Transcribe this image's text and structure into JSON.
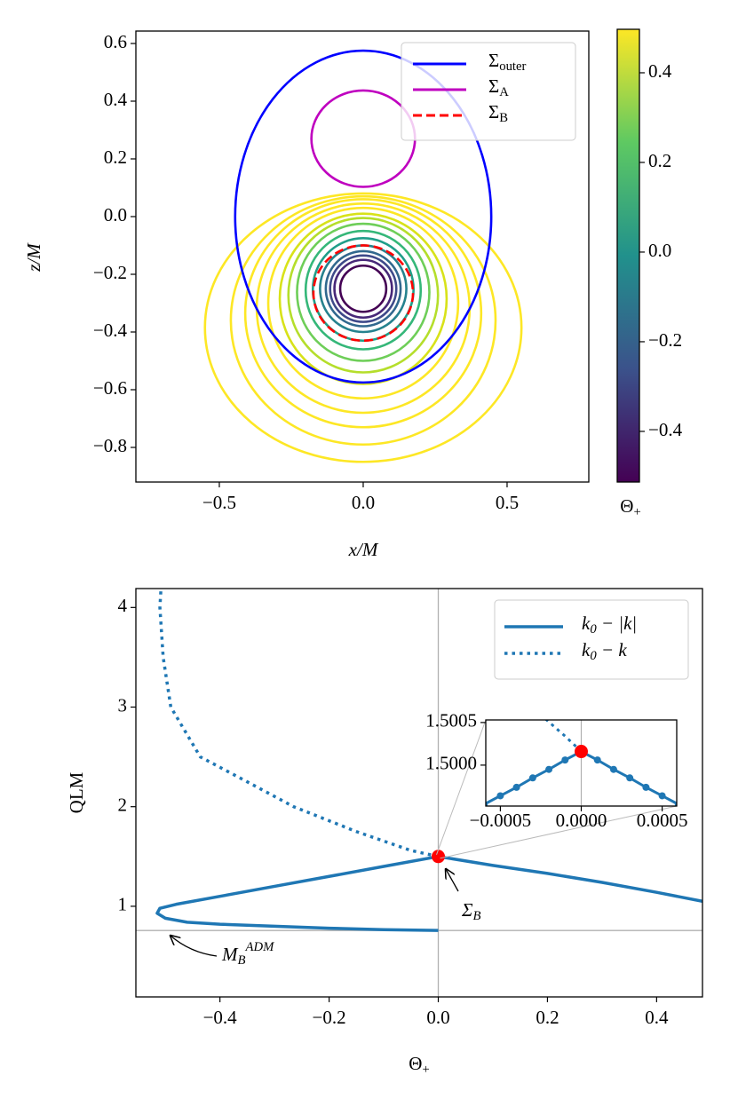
{
  "chart_data": [
    {
      "type": "contour",
      "xlabel": "x/M",
      "ylabel": "z/M",
      "xlim": [
        -0.79,
        0.784
      ],
      "ylim": [
        -0.92,
        0.643
      ],
      "xticks": [
        {
          "value": -0.5,
          "label": "−0.5"
        },
        {
          "value": 0,
          "label": "0.0"
        },
        0.5
      ],
      "yticks": [
        {
          "value": -0.8,
          "label": "−0.8"
        },
        {
          "value": -0.6,
          "label": "−0.6"
        },
        {
          "value": -0.4,
          "label": "−0.4"
        },
        {
          "value": -0.2,
          "label": "−0.2"
        },
        {
          "value": 0,
          "label": "0.0"
        },
        0.2,
        0.4,
        0.6
      ],
      "contours": [
        {
          "color": "#ffffff",
          "center": [
            0,
            -0.25
          ],
          "radii": [
            0.025,
            0.025
          ]
        },
        {
          "color": "#ffffff",
          "center": [
            0,
            -0.25
          ],
          "radii": [
            0.043,
            0.043
          ]
        },
        {
          "color": "#ffffff",
          "center": [
            0,
            -0.25
          ],
          "radii": [
            0.06,
            0.06
          ]
        },
        {
          "color": "#440154",
          "center": [
            0,
            -0.25
          ],
          "radii": [
            0.08,
            0.08
          ]
        },
        {
          "color": "#482878",
          "center": [
            0,
            -0.25
          ],
          "radii": [
            0.1,
            0.1
          ]
        },
        {
          "color": "#3e4989",
          "center": [
            0,
            -0.25
          ],
          "radii": [
            0.115,
            0.115
          ]
        },
        {
          "color": "#31688e",
          "center": [
            0,
            -0.25
          ],
          "radii": [
            0.13,
            0.13
          ]
        },
        {
          "color": "#26828e",
          "center": [
            0,
            -0.25
          ],
          "radii": [
            0.15,
            0.15
          ]
        },
        {
          "color": "#1f9e89",
          "center": [
            0,
            -0.2525
          ],
          "radii": [
            0.175,
            0.1775
          ]
        },
        {
          "color": "#35b779",
          "center": [
            0,
            -0.255
          ],
          "radii": [
            0.2,
            0.205
          ]
        },
        {
          "color": "#6ece58",
          "center": [
            0,
            -0.2625
          ],
          "radii": [
            0.23,
            0.2375
          ]
        },
        {
          "color": "#b5de2b",
          "center": [
            0,
            -0.2725
          ],
          "radii": [
            0.26,
            0.2675
          ]
        },
        {
          "color": "#d8e219",
          "center": [
            0,
            -0.285
          ],
          "radii": [
            0.29,
            0.295
          ]
        },
        {
          "color": "#fde725",
          "center": [
            0,
            -0.3
          ],
          "radii": [
            0.33,
            0.33
          ]
        },
        {
          "color": "#fde725",
          "center": [
            0,
            -0.3175
          ],
          "radii": [
            0.37,
            0.3625
          ]
        },
        {
          "color": "#fde725",
          "center": [
            0,
            -0.335
          ],
          "radii": [
            0.41,
            0.395
          ]
        },
        {
          "color": "#fde725",
          "center": [
            0,
            -0.36
          ],
          "radii": [
            0.46,
            0.43
          ]
        },
        {
          "color": "#fde725",
          "center": [
            0,
            -0.385
          ],
          "radii": [
            0.55,
            0.465
          ]
        }
      ],
      "series": [
        {
          "name": "Σouter",
          "color": "#0000ff",
          "linestyle": "solid",
          "center": [
            0,
            0
          ],
          "radii": [
            0.445,
            0.575
          ]
        },
        {
          "name": "ΣA",
          "color": "#bf00bf",
          "linestyle": "solid",
          "center": [
            0,
            0.27
          ],
          "radii": [
            0.18,
            0.167
          ]
        },
        {
          "name": "ΣB",
          "color": "#ff0000",
          "linestyle": "dashed",
          "center": [
            0,
            -0.265
          ],
          "radii": [
            0.173,
            0.165
          ]
        }
      ],
      "colorbar": {
        "label": "Θ+",
        "lim": [
          -0.513,
          0.497
        ],
        "ticks": [
          {
            "value": -0.4,
            "label": "−0.4"
          },
          {
            "value": -0.2,
            "label": "−0.2"
          },
          {
            "value": 0,
            "label": "0.0"
          },
          0.2,
          0.4
        ],
        "colormap": [
          "#440154",
          "#3b528b",
          "#21918c",
          "#5ec962",
          "#fde725"
        ]
      }
    },
    {
      "type": "line",
      "xlabel": "Θ+",
      "ylabel": "QLM",
      "xlim": [
        -0.554,
        0.484
      ],
      "ylim": [
        0.09,
        4.19
      ],
      "xticks": [
        {
          "value": -0.4,
          "label": "−0.4"
        },
        {
          "value": -0.2,
          "label": "−0.2"
        },
        {
          "value": 0,
          "label": "0.0"
        },
        0.2,
        0.4
      ],
      "yticks": [
        1,
        2,
        3,
        4
      ],
      "vline": 0,
      "hline": 0.757,
      "series": [
        {
          "name": "k0 − |k|",
          "color": "#1f77b4",
          "linestyle": "solid",
          "x": [
            0,
            -0.1,
            -0.2,
            -0.3,
            -0.4,
            -0.46,
            -0.5,
            -0.515,
            -0.51,
            -0.48,
            -0.4,
            -0.3,
            -0.2,
            -0.1,
            0,
            0.1,
            0.2,
            0.3,
            0.4,
            0.484
          ],
          "values": [
            0.757,
            0.765,
            0.78,
            0.8,
            0.82,
            0.84,
            0.88,
            0.93,
            0.98,
            1.02,
            1.1,
            1.2,
            1.3,
            1.4,
            1.5,
            1.41,
            1.33,
            1.24,
            1.14,
            1.05
          ]
        },
        {
          "name": "k0 − k",
          "color": "#1f77b4",
          "linestyle": "dotted",
          "x": [
            0,
            -0.05,
            -0.15,
            -0.265,
            -0.35,
            -0.436,
            -0.49,
            -0.504,
            -0.51,
            -0.508
          ],
          "values": [
            1.5,
            1.56,
            1.75,
            2.0,
            2.25,
            2.5,
            3.0,
            3.5,
            4.0,
            4.19
          ]
        }
      ],
      "marker": {
        "x": 0,
        "y": 1.5,
        "color": "#ff0000"
      },
      "annotations": [
        "ΣB",
        "MBADM"
      ],
      "inset": {
        "xlim": [
          -0.00059,
          0.00059
        ],
        "ylim": [
          1.49952,
          1.50053
        ],
        "xticks": [
          {
            "value": -0.0005,
            "label": "−0.0005"
          },
          {
            "value": 0,
            "label": "0.0000"
          },
          0.0005
        ],
        "yticks": [
          {
            "value": 1.5,
            "label": "1.5000"
          },
          1.5005
        ],
        "solid": {
          "x": [
            -0.0006,
            -0.0005,
            -0.0004,
            -0.0003,
            -0.0002,
            -0.0001,
            0,
            0.0001,
            0.0002,
            0.0003,
            0.0004,
            0.0005,
            0.0006
          ],
          "values": [
            1.49954,
            1.49964,
            1.49974,
            1.49985,
            1.49995,
            1.50006,
            1.50016,
            1.50006,
            1.49995,
            1.49985,
            1.49974,
            1.49964,
            1.49954
          ]
        },
        "dotted": {
          "x": [
            -0.00022,
            -0.0001,
            0
          ],
          "values": [
            1.50054,
            1.50034,
            1.50016
          ]
        },
        "marker": {
          "x": 0,
          "y": 1.50016
        }
      }
    }
  ]
}
